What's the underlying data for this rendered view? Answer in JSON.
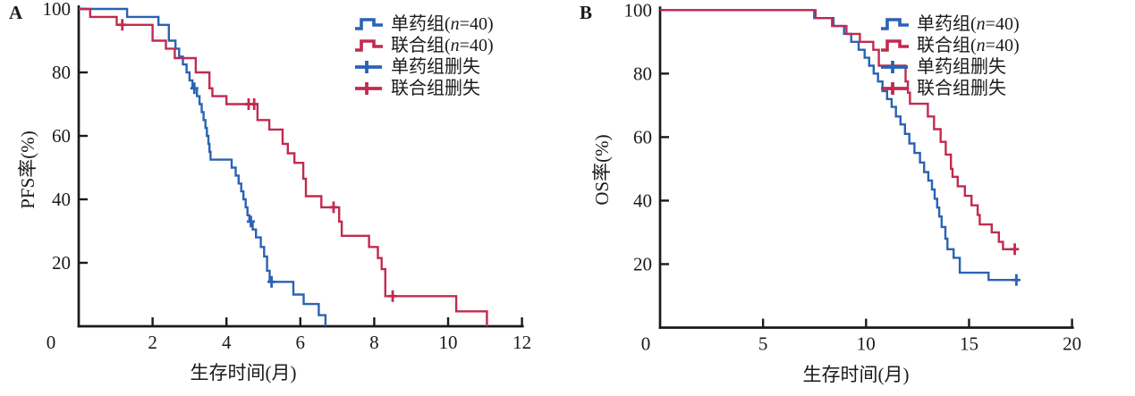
{
  "figure": {
    "background": "#ffffff",
    "panel_a_letter": "A",
    "panel_b_letter": "B"
  },
  "colors": {
    "mono_blue": "#2a62b4",
    "combo_red": "#c22a50",
    "axis": "#1a1a1a"
  },
  "chart_data": [
    {
      "id": "A",
      "type": "line",
      "subtype": "kaplan-meier-step",
      "panel_label": "A",
      "xlabel": "生存时间(月)",
      "ylabel": "PFS率(%)",
      "xlim": [
        0,
        12
      ],
      "xticks": [
        0,
        2,
        4,
        6,
        8,
        10,
        12
      ],
      "ylim": [
        0,
        100
      ],
      "yticks": [
        20,
        40,
        60,
        80,
        100
      ],
      "grid": false,
      "legend_position": "top-right-inside",
      "legend": [
        {
          "label": "单药组(n=40)",
          "color": "#2a62b4",
          "glyph": "step"
        },
        {
          "label": "联合组(n=40)",
          "color": "#c22a50",
          "glyph": "step"
        },
        {
          "label": "单药组删失",
          "color": "#2a62b4",
          "glyph": "plus"
        },
        {
          "label": "联合组删失",
          "color": "#c22a50",
          "glyph": "plus"
        }
      ],
      "series": [
        {
          "name": "单药组(n=40)",
          "color": "#2a62b4",
          "start": [
            0,
            100
          ],
          "drops": [
            [
              1.31,
              97.5
            ],
            [
              2.16,
              95
            ],
            [
              2.44,
              90
            ],
            [
              2.62,
              87.5
            ],
            [
              2.72,
              85
            ],
            [
              2.82,
              82.5
            ],
            [
              2.92,
              80
            ],
            [
              3.0,
              77.5
            ],
            [
              3.08,
              75
            ],
            [
              3.2,
              72.5
            ],
            [
              3.27,
              70
            ],
            [
              3.33,
              67.5
            ],
            [
              3.38,
              65
            ],
            [
              3.43,
              62.5
            ],
            [
              3.47,
              60
            ],
            [
              3.51,
              57.5
            ],
            [
              3.54,
              55
            ],
            [
              3.57,
              52.5
            ],
            [
              4.14,
              50
            ],
            [
              4.25,
              47.5
            ],
            [
              4.33,
              45
            ],
            [
              4.4,
              42.5
            ],
            [
              4.46,
              40
            ],
            [
              4.52,
              37.5
            ],
            [
              4.57,
              35
            ],
            [
              4.62,
              33
            ],
            [
              4.71,
              30.5
            ],
            [
              4.8,
              28
            ],
            [
              4.93,
              25
            ],
            [
              5.02,
              22
            ],
            [
              5.1,
              17.5
            ],
            [
              5.17,
              14
            ],
            [
              5.81,
              10
            ],
            [
              6.09,
              7
            ],
            [
              6.5,
              3.5
            ],
            [
              6.68,
              0
            ]
          ],
          "end_x": 6.68,
          "censors": [
            [
              3.13,
              75
            ],
            [
              4.66,
              33
            ],
            [
              5.22,
              14
            ]
          ]
        },
        {
          "name": "联合组(n=40)",
          "color": "#c22a50",
          "start": [
            0,
            100
          ],
          "drops": [
            [
              0.31,
              97.5
            ],
            [
              1.03,
              95
            ],
            [
              2.0,
              90
            ],
            [
              2.36,
              87.5
            ],
            [
              2.6,
              84.5
            ],
            [
              3.17,
              80
            ],
            [
              3.54,
              75
            ],
            [
              3.62,
              72.5
            ],
            [
              4.0,
              70
            ],
            [
              4.84,
              65
            ],
            [
              5.16,
              62
            ],
            [
              5.52,
              57.5
            ],
            [
              5.66,
              54.5
            ],
            [
              5.84,
              51.5
            ],
            [
              6.08,
              46.5
            ],
            [
              6.15,
              41
            ],
            [
              6.57,
              37.5
            ],
            [
              7.05,
              33
            ],
            [
              7.12,
              28.5
            ],
            [
              7.86,
              25
            ],
            [
              8.1,
              21.5
            ],
            [
              8.2,
              18
            ],
            [
              8.3,
              9.5
            ],
            [
              10.22,
              4.7
            ],
            [
              11.05,
              0
            ]
          ],
          "end_x": 11.05,
          "censors": [
            [
              1.18,
              95
            ],
            [
              4.6,
              70
            ],
            [
              4.75,
              70
            ],
            [
              6.9,
              37.5
            ],
            [
              8.5,
              9.5
            ]
          ]
        }
      ]
    },
    {
      "id": "B",
      "type": "line",
      "subtype": "kaplan-meier-step",
      "panel_label": "B",
      "xlabel": "生存时间(月)",
      "ylabel": "OS率(%)",
      "xlim": [
        0,
        20
      ],
      "xticks": [
        0,
        5,
        10,
        15,
        20
      ],
      "ylim": [
        0,
        100
      ],
      "yticks": [
        20,
        40,
        60,
        80,
        100
      ],
      "grid": false,
      "legend_position": "top-right-inside",
      "legend": [
        {
          "label": "单药组(n=40)",
          "color": "#2a62b4",
          "glyph": "step"
        },
        {
          "label": "联合组(n=40)",
          "color": "#c22a50",
          "glyph": "step"
        },
        {
          "label": "单药组删失",
          "color": "#2a62b4",
          "glyph": "plus"
        },
        {
          "label": "联合组删失",
          "color": "#c22a50",
          "glyph": "plus"
        }
      ],
      "series": [
        {
          "name": "单药组(n=40)",
          "color": "#2a62b4",
          "start": [
            0,
            100
          ],
          "drops": [
            [
              7.48,
              97.5
            ],
            [
              8.42,
              95
            ],
            [
              8.93,
              92.5
            ],
            [
              9.28,
              90
            ],
            [
              9.64,
              87.5
            ],
            [
              9.93,
              85
            ],
            [
              10.15,
              82.5
            ],
            [
              10.37,
              80
            ],
            [
              10.58,
              77.5
            ],
            [
              10.8,
              74.5
            ],
            [
              11.02,
              72
            ],
            [
              11.24,
              69.5
            ],
            [
              11.45,
              66.5
            ],
            [
              11.67,
              64
            ],
            [
              11.89,
              61
            ],
            [
              12.1,
              58
            ],
            [
              12.35,
              55
            ],
            [
              12.62,
              52
            ],
            [
              12.82,
              49
            ],
            [
              13.02,
              46.3
            ],
            [
              13.2,
              43.5
            ],
            [
              13.33,
              40.6
            ],
            [
              13.45,
              37.8
            ],
            [
              13.55,
              35
            ],
            [
              13.67,
              31.7
            ],
            [
              13.85,
              28
            ],
            [
              13.95,
              24.7
            ],
            [
              14.25,
              22
            ],
            [
              14.55,
              17.3
            ],
            [
              15.95,
              15
            ]
          ],
          "end_x": 17.38,
          "censors": [
            [
              17.3,
              15
            ]
          ]
        },
        {
          "name": "联合组(n=40)",
          "color": "#c22a50",
          "start": [
            0,
            100
          ],
          "drops": [
            [
              7.55,
              97.5
            ],
            [
              8.35,
              95
            ],
            [
              9.05,
              92.5
            ],
            [
              9.7,
              90
            ],
            [
              10.35,
              87.5
            ],
            [
              10.62,
              82.5
            ],
            [
              11.92,
              77.5
            ],
            [
              12.03,
              74
            ],
            [
              12.13,
              70.5
            ],
            [
              13.0,
              66.5
            ],
            [
              13.3,
              62.5
            ],
            [
              13.62,
              58.5
            ],
            [
              13.87,
              54.5
            ],
            [
              14.12,
              50
            ],
            [
              14.2,
              47.5
            ],
            [
              14.45,
              44.5
            ],
            [
              14.8,
              41.5
            ],
            [
              15.12,
              38.5
            ],
            [
              15.42,
              35.5
            ],
            [
              15.52,
              32.5
            ],
            [
              16.1,
              30
            ],
            [
              16.45,
              27
            ],
            [
              16.65,
              24.7
            ]
          ],
          "end_x": 17.42,
          "censors": [
            [
              17.22,
              24.7
            ]
          ]
        }
      ]
    }
  ]
}
